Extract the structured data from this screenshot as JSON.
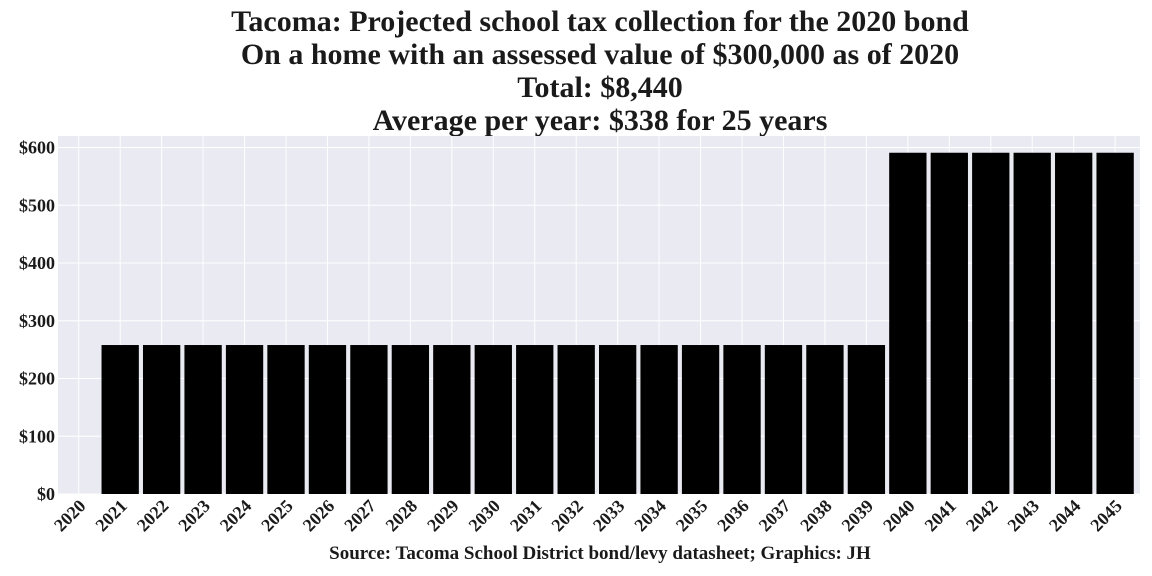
{
  "chart_data": {
    "type": "bar",
    "title_lines": [
      "Tacoma: Projected school tax collection for the 2020 bond",
      "On a home with an assessed value of $300,000 as of 2020",
      "Total: $8,440",
      "Average per year: $338 for 25 years"
    ],
    "categories": [
      "2020",
      "2021",
      "2022",
      "2023",
      "2024",
      "2025",
      "2026",
      "2027",
      "2028",
      "2029",
      "2030",
      "2031",
      "2032",
      "2033",
      "2034",
      "2035",
      "2036",
      "2037",
      "2038",
      "2039",
      "2040",
      "2041",
      "2042",
      "2043",
      "2044",
      "2045"
    ],
    "values": [
      0,
      258,
      258,
      258,
      258,
      258,
      258,
      258,
      258,
      258,
      258,
      258,
      258,
      258,
      258,
      258,
      258,
      258,
      258,
      258,
      591,
      591,
      591,
      591,
      591,
      591
    ],
    "y_ticks": [
      0,
      100,
      200,
      300,
      400,
      500,
      600
    ],
    "y_tick_labels": [
      "$0",
      "$100",
      "$200",
      "$300",
      "$400",
      "$500",
      "$600"
    ],
    "ylim": [
      0,
      620
    ],
    "bar_color": "#000000",
    "plot_background": "#eaeaf2",
    "grid_color": "#ffffff",
    "grid": true,
    "source": "Source: Tacoma School District bond/levy datasheet; Graphics: JH"
  }
}
